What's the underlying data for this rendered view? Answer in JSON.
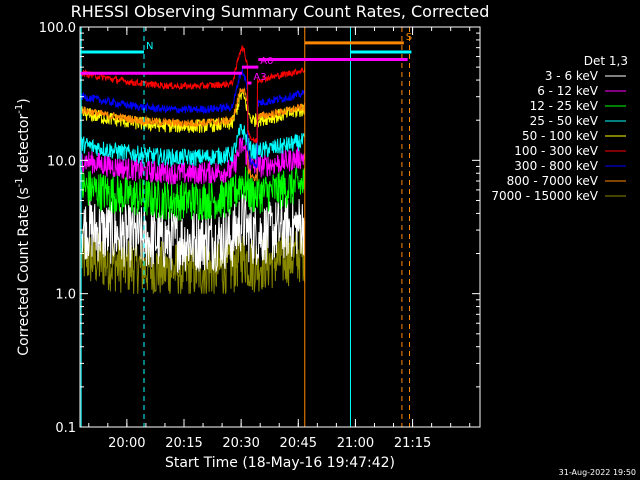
{
  "chart_data": {
    "type": "line",
    "title": "RHESSI Observing Summary Count Rates, Corrected",
    "xlabel": "Start Time (18-May-16 19:47:42)",
    "ylabel_main": "Corrected Count Rate (s",
    "ylabel_sup1": "-1",
    "ylabel_mid": " detector",
    "ylabel_sup2": "-1",
    "ylabel_end": ")",
    "yscale": "log",
    "ylim": [
      0.1,
      100.0
    ],
    "y_ticks": [
      {
        "value": 100.0,
        "label": "100.0"
      },
      {
        "value": 10.0,
        "label": "10.0"
      },
      {
        "value": 1.0,
        "label": "1.0"
      },
      {
        "value": 0.1,
        "label": "0.1"
      }
    ],
    "xlim_minutes": [
      0,
      105
    ],
    "x_ticks": [
      {
        "minute": 12.3,
        "label": "20:00"
      },
      {
        "minute": 27.3,
        "label": "20:15"
      },
      {
        "minute": 42.3,
        "label": "20:30"
      },
      {
        "minute": 57.3,
        "label": "20:45"
      },
      {
        "minute": 72.3,
        "label": "21:00"
      },
      {
        "minute": 87.3,
        "label": "21:15"
      }
    ],
    "legend_title": "Det 1,3",
    "legend_position": "right",
    "series": [
      {
        "name": "3 - 6 keV",
        "color": "#ffffff",
        "base": 2.5,
        "amp": 0.55,
        "flare": 0.3
      },
      {
        "name": "6 - 12 keV",
        "color": "#ff00ff",
        "base": 8.0,
        "amp": 0.2,
        "flare": 0.5
      },
      {
        "name": "12 - 25 keV",
        "color": "#00ff00",
        "base": 5.0,
        "amp": 0.35,
        "flare": 0.3
      },
      {
        "name": "25 - 50 keV",
        "color": "#00ffff",
        "base": 10.5,
        "amp": 0.15,
        "flare": 0.5
      },
      {
        "name": "50 - 100 keV",
        "color": "#ffff00",
        "base": 18.0,
        "amp": 0.12,
        "flare": 0.6
      },
      {
        "name": "100 - 300 keV",
        "color": "#ff0000",
        "base": 36.0,
        "amp": 0.06,
        "flare": 0.8
      },
      {
        "name": "300 - 800 keV",
        "color": "#0000ff",
        "base": 24.0,
        "amp": 0.07,
        "flare": 0.8
      },
      {
        "name": "800 - 7000 keV",
        "color": "#ff8800",
        "base": 19.0,
        "amp": 0.07,
        "flare": 0.7
      },
      {
        "name": "7000 - 15000 keV",
        "color": "#888800",
        "base": 1.5,
        "amp": 0.5,
        "flare": 0.2
      }
    ],
    "state_bars": [
      {
        "label": "N",
        "color": "#00ffff",
        "start": 0,
        "end": 16.8,
        "value": 65
      },
      {
        "label": "",
        "color": "#00ffff",
        "start": 71.0,
        "end": 87.0,
        "value": 65
      },
      {
        "label": "S",
        "color": "#ff8800",
        "start": 59.0,
        "end": 85.0,
        "value": 76
      },
      {
        "label": "",
        "color": "#ff00ff",
        "start": 0,
        "end": 42.5,
        "value": 45
      },
      {
        "label": "A0",
        "color": "#ff00ff",
        "start": 42.5,
        "end": 46.8,
        "value": 50
      },
      {
        "label": "A3",
        "color": "#ff00ff",
        "start": 44.0,
        "end": 45.0,
        "value": 38
      },
      {
        "label": "",
        "color": "#ff00ff",
        "start": 46.8,
        "end": 86.0,
        "value": 57
      }
    ],
    "markers": [
      {
        "minute": 0.3,
        "color": "#00ffff",
        "dashed": false
      },
      {
        "minute": 16.8,
        "color": "#00ffff",
        "dashed": true
      },
      {
        "minute": 59.0,
        "color": "#ff8800",
        "dashed": false
      },
      {
        "minute": 71.0,
        "color": "#00ffff",
        "dashed": false
      },
      {
        "minute": 84.5,
        "color": "#ff8800",
        "dashed": true
      },
      {
        "minute": 86.5,
        "color": "#ff8800",
        "dashed": true
      }
    ],
    "footer_date": "31-Aug-2022 19:50"
  }
}
